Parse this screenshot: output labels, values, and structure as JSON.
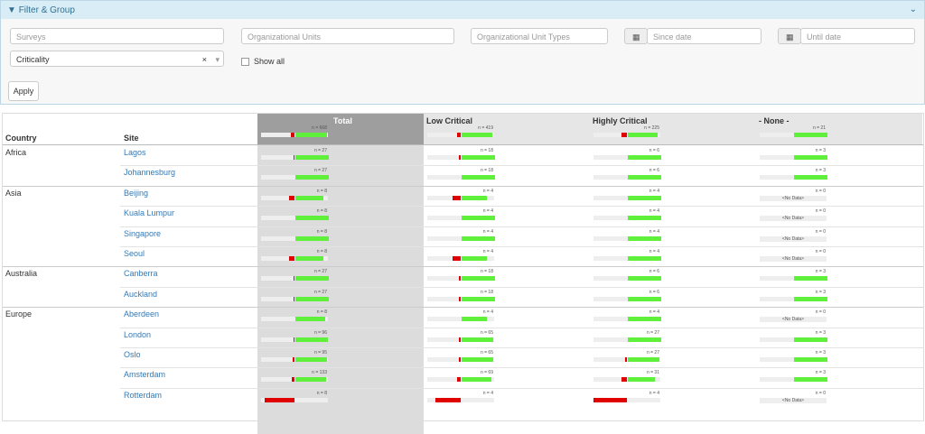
{
  "filter": {
    "title": "Filter & Group",
    "surveys": "Surveys",
    "org_units": "Organizational Units",
    "org_unit_types": "Organizational Unit Types",
    "since": "Since date",
    "until": "Until date",
    "criticality": "Criticality",
    "show_all": "Show all",
    "apply": "Apply"
  },
  "table": {
    "headers": {
      "country": "Country",
      "site": "Site",
      "columns": [
        "Total",
        "Low Critical",
        "Highly Critical",
        "- None -"
      ]
    },
    "totals": [
      {
        "n": "n = 668",
        "red": 12,
        "green": 95
      },
      {
        "n": "n = 419",
        "red": 12,
        "green": 92
      },
      {
        "n": "n = 225",
        "red": 15,
        "green": 90
      },
      {
        "n": "n = 21",
        "red": 0,
        "green": 100
      }
    ],
    "rows": [
      {
        "country": "Africa",
        "site": "Lagos",
        "cells": [
          {
            "n": "n = 27",
            "red": 3,
            "green": 100
          },
          {
            "n": "n = 18",
            "red": 5,
            "green": 100
          },
          {
            "n": "n = 6",
            "red": 0,
            "green": 100
          },
          {
            "n": "n = 3",
            "red": 0,
            "green": 100
          }
        ]
      },
      {
        "country": null,
        "site": "Johannesburg",
        "cells": [
          {
            "n": "n = 27",
            "red": 0,
            "green": 100
          },
          {
            "n": "n = 18",
            "red": 0,
            "green": 100
          },
          {
            "n": "n = 6",
            "red": 0,
            "green": 100
          },
          {
            "n": "n = 3",
            "red": 0,
            "green": 100
          }
        ]
      },
      {
        "country": "Asia",
        "site": "Beijing",
        "cells": [
          {
            "n": "n = 8",
            "red": 15,
            "green": 85
          },
          {
            "n": "n = 4",
            "red": 25,
            "green": 75
          },
          {
            "n": "n = 4",
            "red": 0,
            "green": 100
          },
          {
            "n": "n = 0",
            "no_data": "<No Data>"
          }
        ]
      },
      {
        "country": null,
        "site": "Kuala Lumpur",
        "cells": [
          {
            "n": "n = 8",
            "red": 0,
            "green": 100
          },
          {
            "n": "n = 4",
            "red": 0,
            "green": 100
          },
          {
            "n": "n = 4",
            "red": 0,
            "green": 100
          },
          {
            "n": "n = 0",
            "no_data": "<No Data>"
          }
        ]
      },
      {
        "country": null,
        "site": "Singapore",
        "cells": [
          {
            "n": "n = 8",
            "red": 0,
            "green": 100
          },
          {
            "n": "n = 4",
            "red": 0,
            "green": 100
          },
          {
            "n": "n = 4",
            "red": 0,
            "green": 100
          },
          {
            "n": "n = 0",
            "no_data": "<No Data>"
          }
        ]
      },
      {
        "country": null,
        "site": "Seoul",
        "cells": [
          {
            "n": "n = 8",
            "red": 15,
            "green": 85
          },
          {
            "n": "n = 4",
            "red": 25,
            "green": 75
          },
          {
            "n": "n = 4",
            "red": 0,
            "green": 100
          },
          {
            "n": "n = 0",
            "no_data": "<No Data>"
          }
        ]
      },
      {
        "country": "Australia",
        "site": "Canberra",
        "cells": [
          {
            "n": "n = 27",
            "red": 3,
            "green": 100
          },
          {
            "n": "n = 18",
            "red": 5,
            "green": 100
          },
          {
            "n": "n = 6",
            "red": 0,
            "green": 100
          },
          {
            "n": "n = 3",
            "red": 0,
            "green": 100
          }
        ]
      },
      {
        "country": null,
        "site": "Auckland",
        "cells": [
          {
            "n": "n = 27",
            "red": 3,
            "green": 100
          },
          {
            "n": "n = 18",
            "red": 5,
            "green": 100
          },
          {
            "n": "n = 6",
            "red": 0,
            "green": 100
          },
          {
            "n": "n = 3",
            "red": 0,
            "green": 100
          }
        ]
      },
      {
        "country": "Europe",
        "site": "Aberdeen",
        "cells": [
          {
            "n": "n = 8",
            "red": 0,
            "green": 90
          },
          {
            "n": "n = 4",
            "red": 0,
            "green": 75
          },
          {
            "n": "n = 4",
            "red": 0,
            "green": 100
          },
          {
            "n": "n = 0",
            "no_data": "<No Data>"
          }
        ]
      },
      {
        "country": null,
        "site": "London",
        "cells": [
          {
            "n": "n = 96",
            "red": 3,
            "green": 97
          },
          {
            "n": "n = 65",
            "red": 5,
            "green": 95
          },
          {
            "n": "n = 27",
            "red": 0,
            "green": 100
          },
          {
            "n": "n = 3",
            "red": 0,
            "green": 100
          }
        ]
      },
      {
        "country": null,
        "site": "Oslo",
        "cells": [
          {
            "n": "n = 95",
            "red": 5,
            "green": 95
          },
          {
            "n": "n = 65",
            "red": 5,
            "green": 95
          },
          {
            "n": "n = 27",
            "red": 5,
            "green": 95
          },
          {
            "n": "n = 3",
            "red": 0,
            "green": 100
          }
        ]
      },
      {
        "country": null,
        "site": "Amsterdam",
        "cells": [
          {
            "n": "n = 133",
            "red": 8,
            "green": 92
          },
          {
            "n": "n = 69",
            "red": 10,
            "green": 90
          },
          {
            "n": "n = 31",
            "red": 15,
            "green": 80
          },
          {
            "n": "n = 3",
            "red": 0,
            "green": 100
          }
        ]
      },
      {
        "country": null,
        "site": "Rotterdam",
        "cells": [
          {
            "n": "n = 8",
            "red": 90,
            "green": 0
          },
          {
            "n": "n = 4",
            "red": 75,
            "green": 0
          },
          {
            "n": "n = 4",
            "red": 100,
            "green": 0
          },
          {
            "n": "n = 0",
            "no_data": "<No Data>"
          }
        ]
      }
    ]
  }
}
